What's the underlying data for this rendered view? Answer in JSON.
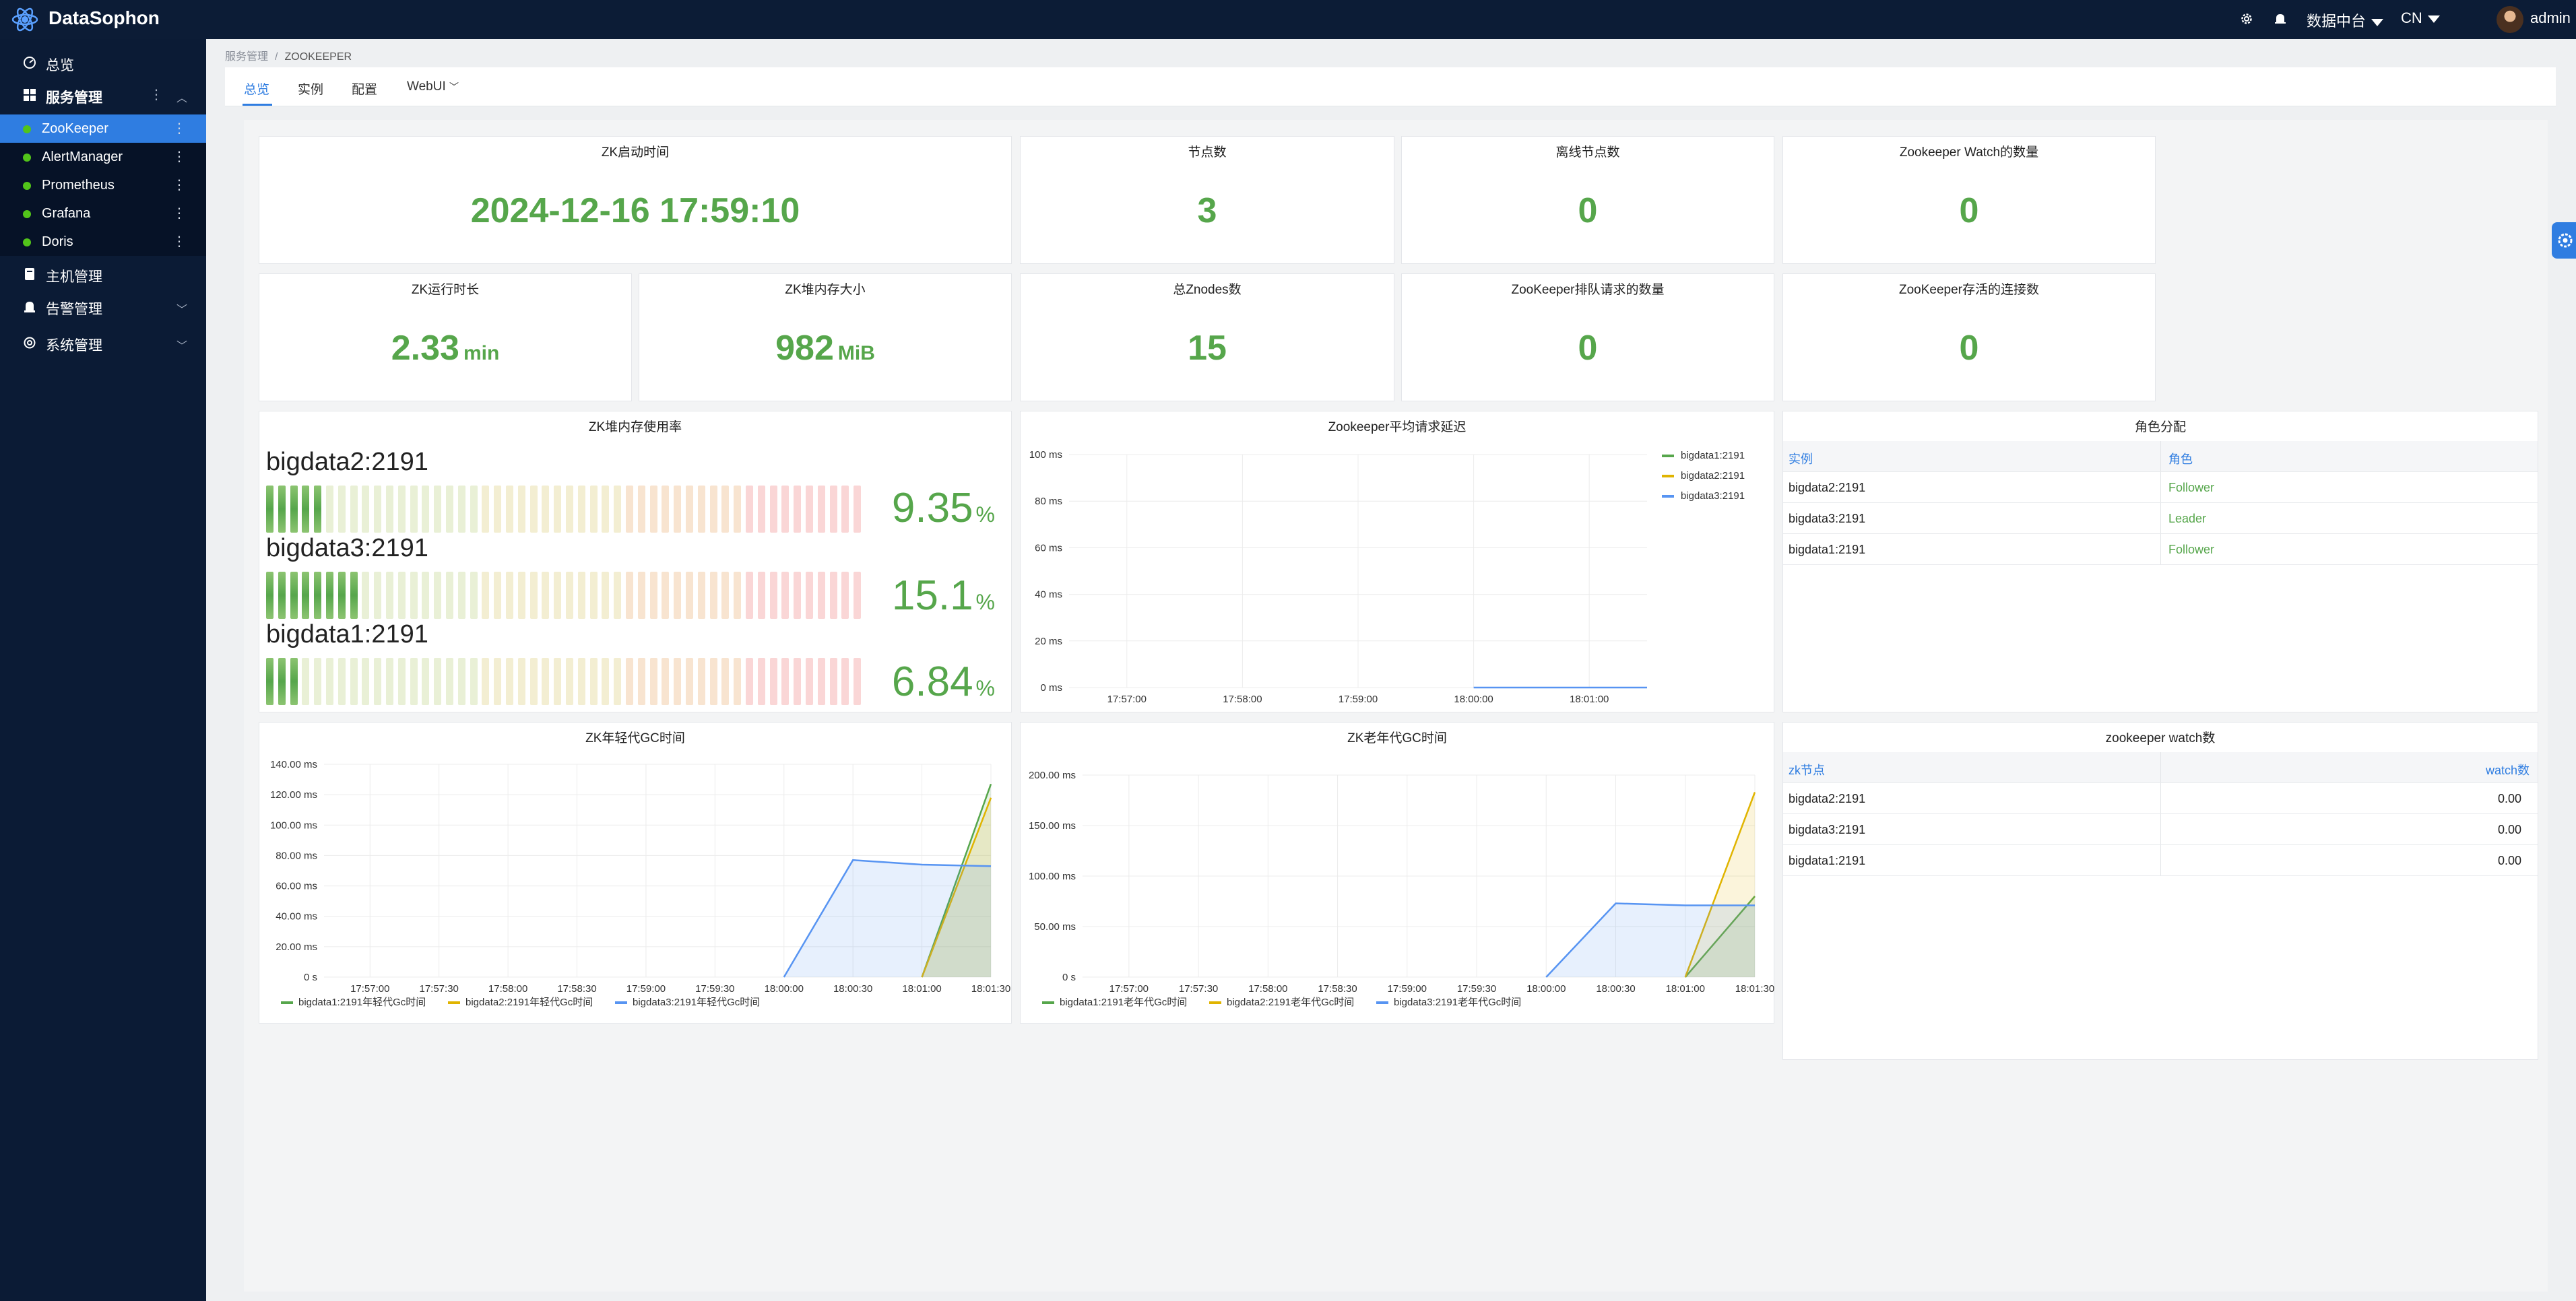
{
  "app": {
    "title": "DataSophon"
  },
  "topbar": {
    "data_center": "数据中台",
    "lang": "CN",
    "user": "admin"
  },
  "sidebar": {
    "items": [
      {
        "label": "总览",
        "icon": "dashboard-icon"
      },
      {
        "label": "服务管理",
        "icon": "apps-icon"
      },
      {
        "label": "主机管理",
        "icon": "server-icon"
      },
      {
        "label": "告警管理",
        "icon": "alarm-icon"
      },
      {
        "label": "系统管理",
        "icon": "settings-icon"
      }
    ],
    "services": [
      {
        "label": "ZooKeeper",
        "active": true
      },
      {
        "label": "AlertManager"
      },
      {
        "label": "Prometheus"
      },
      {
        "label": "Grafana"
      },
      {
        "label": "Doris"
      }
    ]
  },
  "breadcrumb": {
    "parent": "服务管理",
    "sep": "/",
    "current": "ZOOKEEPER"
  },
  "tabs": [
    "总览",
    "实例",
    "配置",
    "WebUI"
  ],
  "stats": {
    "start_time": {
      "title": "ZK启动时间",
      "value": "2024-12-16 17:59:10"
    },
    "nodes": {
      "title": "节点数",
      "value": "3"
    },
    "offline": {
      "title": "离线节点数",
      "value": "0"
    },
    "watch_count": {
      "title": "Zookeeper Watch的数量",
      "value": "0"
    },
    "uptime": {
      "title": "ZK运行时长",
      "value": "2.33",
      "unit": "min"
    },
    "heap_size": {
      "title": "ZK堆内存大小",
      "value": "982",
      "unit": "MiB"
    },
    "znodes": {
      "title": "总Znodes数",
      "value": "15"
    },
    "queued": {
      "title": "ZooKeeper排队请求的数量",
      "value": "0"
    },
    "alive_conn": {
      "title": "ZooKeeper存活的连接数",
      "value": "0"
    }
  },
  "heap_usage": {
    "title": "ZK堆内存使用率",
    "items": [
      {
        "name": "bigdata2:2191",
        "value": "9.35",
        "fraction": 0.0935,
        "unit": "%"
      },
      {
        "name": "bigdata3:2191",
        "value": "15.1",
        "fraction": 0.151,
        "unit": "%"
      },
      {
        "name": "bigdata1:2191",
        "value": "6.84",
        "fraction": 0.0684,
        "unit": "%"
      }
    ]
  },
  "roles": {
    "title": "角色分配",
    "headers": [
      "实例",
      "角色"
    ],
    "rows": [
      {
        "instance": "bigdata2:2191",
        "role": "Follower"
      },
      {
        "instance": "bigdata3:2191",
        "role": "Leader"
      },
      {
        "instance": "bigdata1:2191",
        "role": "Follower"
      }
    ]
  },
  "watches": {
    "title": "zookeeper watch数",
    "headers": [
      "zk节点",
      "watch数"
    ],
    "rows": [
      {
        "node": "bigdata2:2191",
        "value": "0.00"
      },
      {
        "node": "bigdata3:2191",
        "value": "0.00"
      },
      {
        "node": "bigdata1:2191",
        "value": "0.00"
      }
    ]
  },
  "colors": {
    "green": "#56a64b",
    "yellow": "#e0b400",
    "blue": "#5794f2",
    "accent": "#2f7de1"
  },
  "chart_data": [
    {
      "id": "latency",
      "type": "line",
      "title": "Zookeeper平均请求延迟",
      "x": [
        "17:57:00",
        "17:58:00",
        "17:59:00",
        "18:00:00",
        "18:01:00"
      ],
      "yticks": [
        "0 ms",
        "20 ms",
        "40 ms",
        "60 ms",
        "80 ms",
        "100 ms"
      ],
      "ylim": [
        0,
        100
      ],
      "legend_position": "top-right",
      "series": [
        {
          "name": "bigdata1:2191",
          "color": "#56a64b",
          "points": []
        },
        {
          "name": "bigdata2:2191",
          "color": "#e0b400",
          "points": []
        },
        {
          "name": "bigdata3:2191",
          "color": "#5794f2",
          "points": [
            [
              "18:00:00",
              0
            ],
            [
              "18:01:30",
              0
            ]
          ]
        }
      ]
    },
    {
      "id": "young_gc",
      "type": "area",
      "title": "ZK年轻代GC时间",
      "x": [
        "17:57:00",
        "17:57:30",
        "17:58:00",
        "17:58:30",
        "17:59:00",
        "17:59:30",
        "18:00:00",
        "18:00:30",
        "18:01:00",
        "18:01:30"
      ],
      "yticks": [
        "0 s",
        "20.00 ms",
        "40.00 ms",
        "60.00 ms",
        "80.00 ms",
        "100.00 ms",
        "120.00 ms",
        "140.00 ms"
      ],
      "ylim": [
        0,
        140
      ],
      "legend_position": "bottom",
      "series": [
        {
          "name": "bigdata1:2191年轻代Gc时间",
          "color": "#56a64b",
          "points": [
            [
              "18:01:00",
              0
            ],
            [
              "18:01:30",
              127
            ]
          ]
        },
        {
          "name": "bigdata2:2191年轻代Gc时间",
          "color": "#e0b400",
          "points": [
            [
              "18:01:00",
              0
            ],
            [
              "18:01:30",
              118
            ]
          ]
        },
        {
          "name": "bigdata3:2191年轻代Gc时间",
          "color": "#5794f2",
          "points": [
            [
              "18:00:00",
              0
            ],
            [
              "18:00:30",
              77
            ],
            [
              "18:01:00",
              74
            ],
            [
              "18:01:30",
              73
            ]
          ]
        }
      ]
    },
    {
      "id": "old_gc",
      "type": "area",
      "title": "ZK老年代GC时间",
      "x": [
        "17:57:00",
        "17:57:30",
        "17:58:00",
        "17:58:30",
        "17:59:00",
        "17:59:30",
        "18:00:00",
        "18:00:30",
        "18:01:00",
        "18:01:30"
      ],
      "yticks": [
        "0 s",
        "50.00 ms",
        "100.00 ms",
        "150.00 ms",
        "200.00 ms"
      ],
      "ylim": [
        0,
        200
      ],
      "legend_position": "bottom",
      "series": [
        {
          "name": "bigdata1:2191老年代Gc时间",
          "color": "#56a64b",
          "points": [
            [
              "18:01:00",
              0
            ],
            [
              "18:01:30",
              80
            ]
          ]
        },
        {
          "name": "bigdata2:2191老年代Gc时间",
          "color": "#e0b400",
          "points": [
            [
              "18:01:00",
              0
            ],
            [
              "18:01:30",
              183
            ]
          ]
        },
        {
          "name": "bigdata3:2191老年代Gc时间",
          "color": "#5794f2",
          "points": [
            [
              "18:00:00",
              0
            ],
            [
              "18:00:30",
              73
            ],
            [
              "18:01:00",
              71
            ],
            [
              "18:01:30",
              71
            ]
          ]
        }
      ]
    }
  ]
}
